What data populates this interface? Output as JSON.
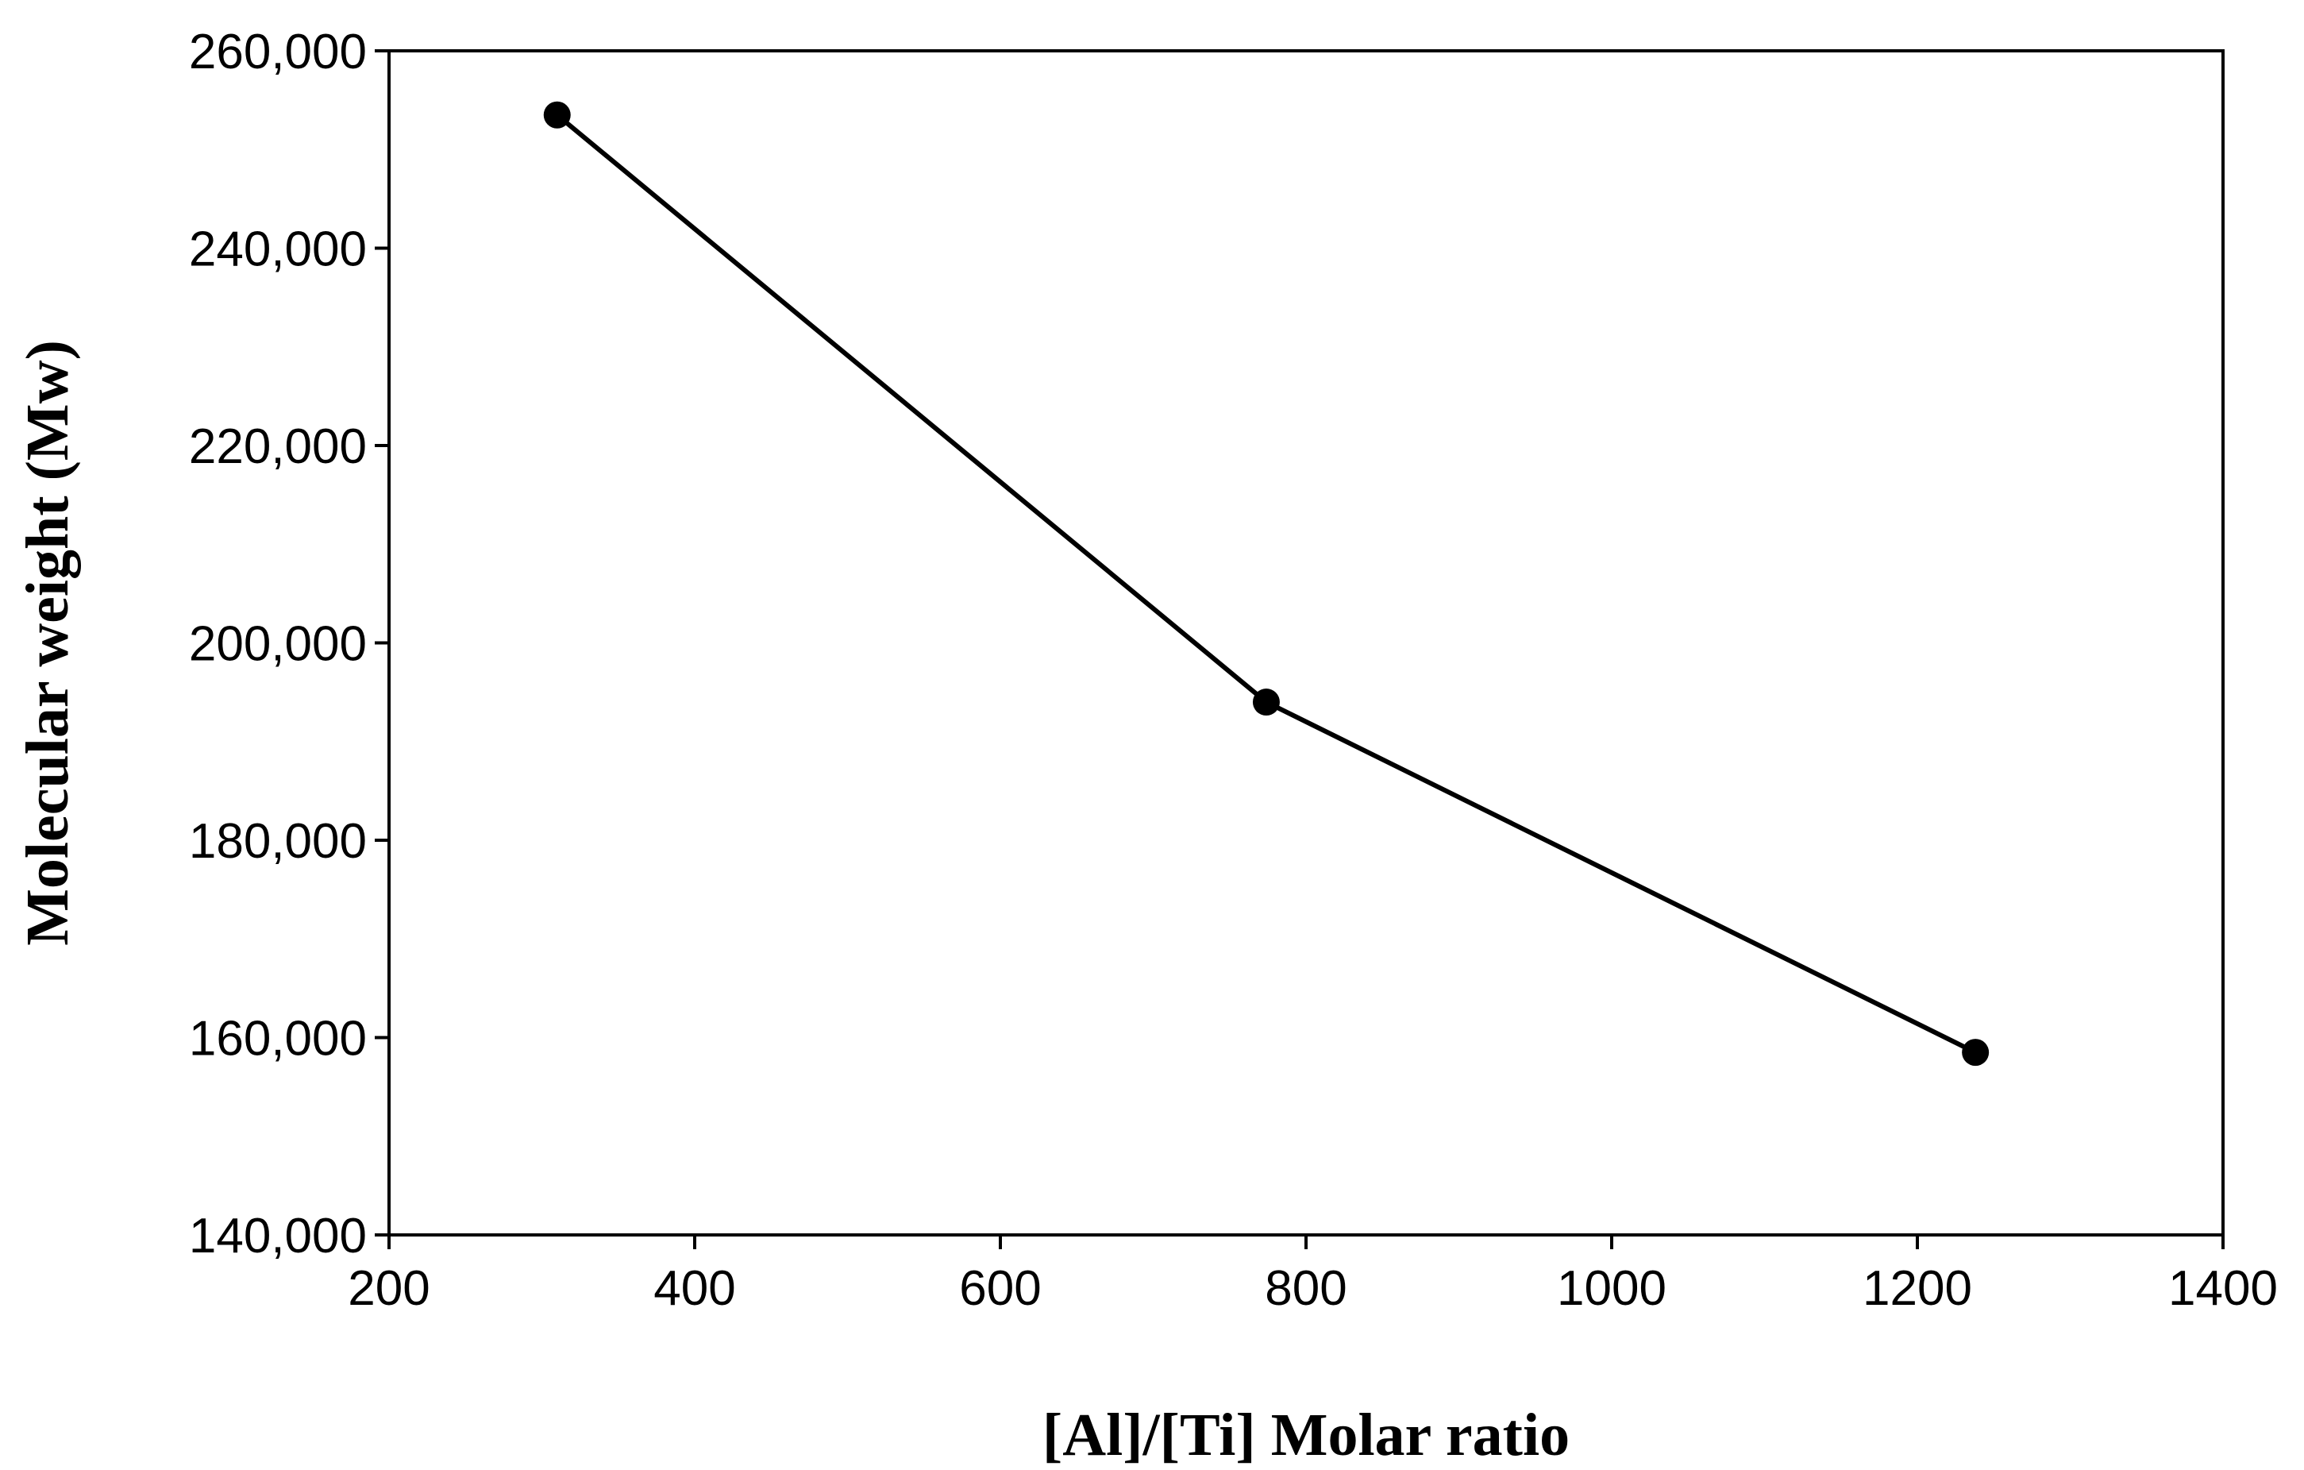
{
  "chart_data": {
    "type": "line",
    "title": "",
    "xlabel": "[Al]/[Ti] Molar ratio",
    "ylabel": "Molecular weight (Mw)",
    "xlim": [
      200,
      1400
    ],
    "ylim": [
      140000,
      260000
    ],
    "x_ticks": [
      "200",
      "400",
      "600",
      "800",
      "1000",
      "1200",
      "1400"
    ],
    "y_ticks": [
      "140,000",
      "160,000",
      "180,000",
      "200,000",
      "220,000",
      "240,000",
      "260,000"
    ],
    "x_tick_values": [
      200,
      400,
      600,
      800,
      1000,
      1200,
      1400
    ],
    "y_tick_values": [
      140000,
      160000,
      180000,
      200000,
      220000,
      240000,
      260000
    ],
    "grid": false,
    "legend": "none",
    "series": [
      {
        "x": [
          310,
          774,
          1238
        ],
        "values": [
          253500,
          194000,
          158500
        ],
        "color": "#000000",
        "marker": "circle"
      }
    ]
  }
}
